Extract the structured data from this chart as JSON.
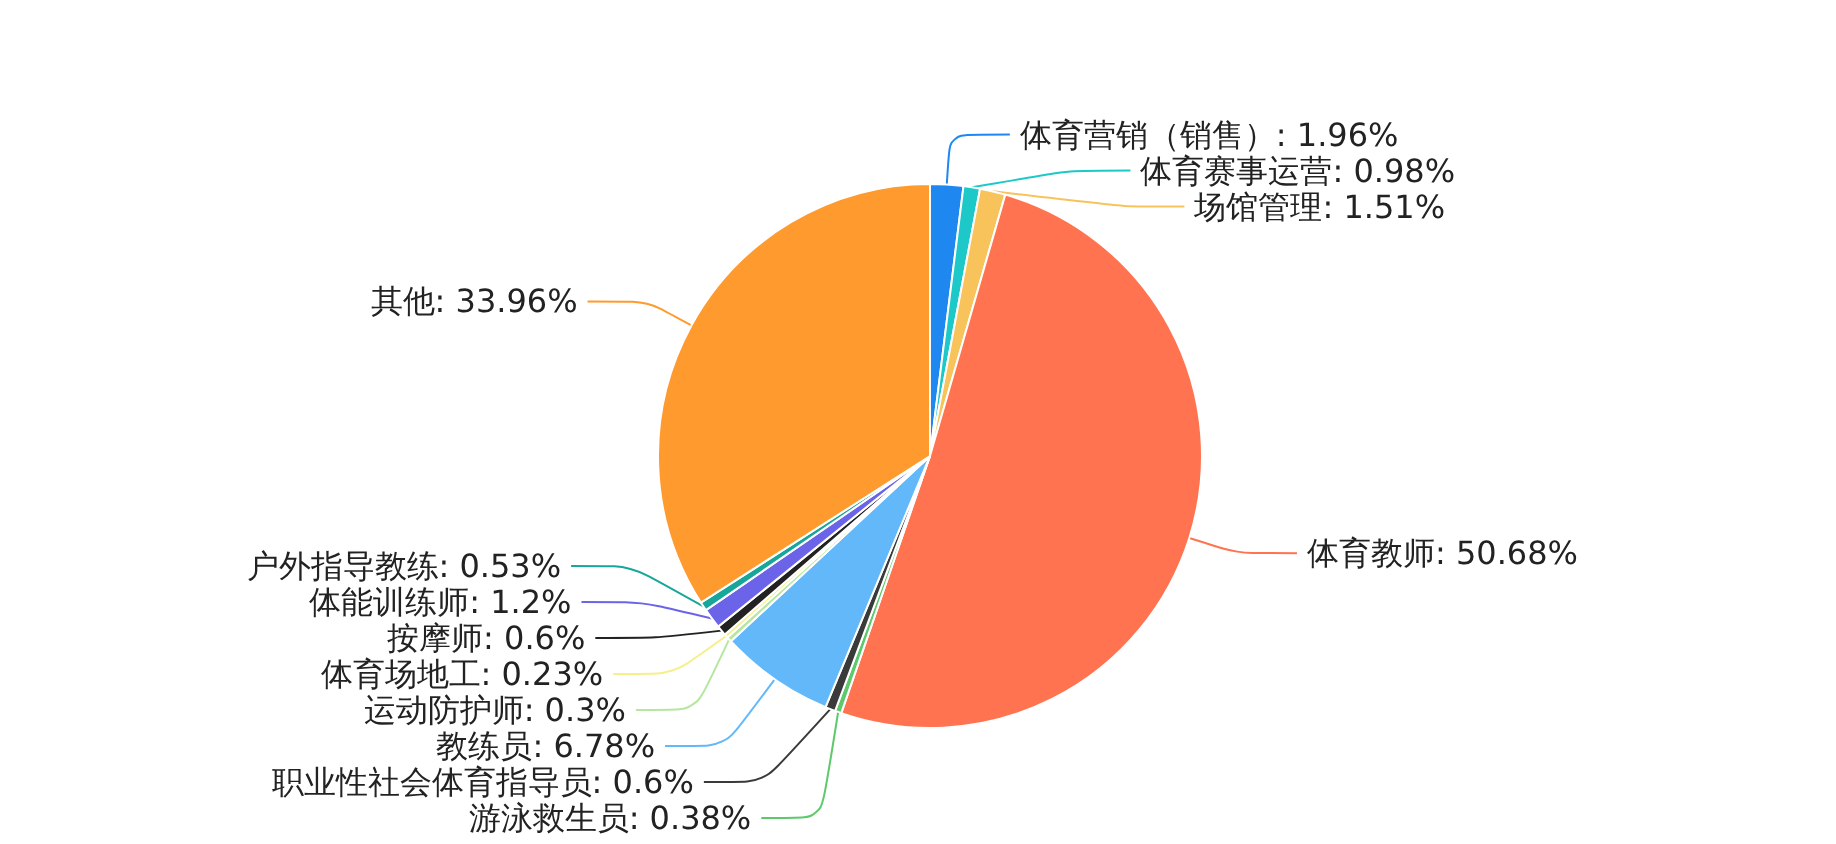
{
  "chart_data": {
    "type": "pie",
    "categories": [
      "体育营销（销售）",
      "体育赛事运营",
      "场馆管理",
      "体育教师",
      "游泳救生员",
      "职业性社会体育指导员",
      "教练员",
      "运动防护师",
      "体育场地工",
      "按摩师",
      "体能训练师",
      "户外指导教练",
      "其他"
    ],
    "values": [
      1.96,
      0.98,
      1.51,
      50.68,
      0.38,
      0.6,
      6.78,
      0.3,
      0.23,
      0.6,
      1.2,
      0.53,
      33.96
    ],
    "colors": [
      "#1e88f0",
      "#1cc8c8",
      "#f7c35a",
      "#ff7350",
      "#5ec96a",
      "#3a3a3a",
      "#62b8f8",
      "#b6e7a0",
      "#f5f08a",
      "#222222",
      "#6b63e8",
      "#17a69a",
      "#ff9a2e"
    ],
    "value_labels": [
      ": 1.96%",
      ": 0.98%",
      ": 1.51%",
      ": 50.68%",
      ": 0.38%",
      ": 0.6%",
      ": 6.78%",
      ": 0.3%",
      ": 0.23%",
      ": 0.6%",
      ": 1.2%",
      ": 0.53%",
      ": 33.96%"
    ]
  }
}
